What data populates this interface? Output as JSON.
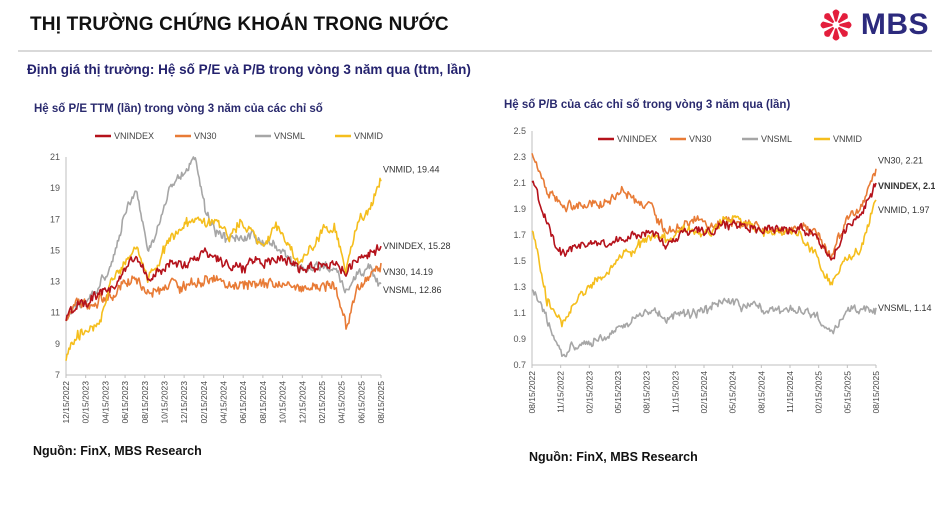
{
  "header": {
    "title": "THỊ TRƯỜNG CHỨNG KHOÁN TRONG NƯỚC",
    "brand": "MBS",
    "brand_colors": {
      "star": "#e31e3c",
      "text": "#2c2a7d"
    }
  },
  "subtitle": "Định giá thị trường: Hệ số P/E và P/B trong vòng 3 năm qua (ttm, lần)",
  "charts": [
    {
      "source": "Nguồn: FinX, MBS Research"
    },
    {
      "source": "Nguồn: FinX, MBS Research"
    }
  ],
  "chart_data": [
    {
      "type": "line",
      "title": "Hệ số P/E TTM (lần) trong vòng 3 năm của các chỉ số",
      "legend_position": "top",
      "y_ticks": [
        7,
        9,
        11,
        13,
        15,
        17,
        19,
        21
      ],
      "ylim": [
        7,
        21
      ],
      "x_ticks": [
        "12/15/2022",
        "02/15/2023",
        "04/15/2023",
        "06/15/2023",
        "08/15/2023",
        "10/15/2023",
        "12/15/2023",
        "02/15/2024",
        "04/15/2024",
        "06/15/2024",
        "08/15/2024",
        "10/15/2024",
        "12/15/2024",
        "02/15/2025",
        "04/15/2025",
        "06/15/2025",
        "08/15/2025"
      ],
      "grid": false,
      "series": [
        {
          "name": "VNINDEX",
          "color": "#b5121b",
          "end_label": "VNINDEX, 15.28",
          "values": [
            10.6,
            11.6,
            11.9,
            12.2,
            12.5,
            13.8,
            14.7,
            13.2,
            13.6,
            14.3,
            14.0,
            14.5,
            14.9,
            14.5,
            14.0,
            13.9,
            14.4,
            14.2,
            14.6,
            14.4,
            13.8,
            14.0,
            14.2,
            14.1,
            13.5,
            14.4,
            14.8,
            15.28
          ]
        },
        {
          "name": "VN30",
          "color": "#e87b36",
          "end_label": "VN30, 14.19",
          "values": [
            10.5,
            11.8,
            11.2,
            11.9,
            12.0,
            13.0,
            13.2,
            12.0,
            12.4,
            13.0,
            12.6,
            12.8,
            13.1,
            12.9,
            12.7,
            12.8,
            12.9,
            12.8,
            13.0,
            12.9,
            12.5,
            12.7,
            12.8,
            12.8,
            10.1,
            12.6,
            13.4,
            14.19
          ]
        },
        {
          "name": "VNSML",
          "color": "#a6a6a6",
          "end_label": "VNSML, 12.86",
          "values": [
            10.7,
            11.5,
            11.9,
            12.8,
            14.3,
            17.3,
            19.1,
            15.0,
            16.6,
            19.2,
            19.8,
            21.0,
            17.5,
            16.2,
            15.6,
            15.9,
            15.9,
            15.3,
            15.5,
            14.5,
            13.7,
            13.8,
            14.0,
            13.7,
            12.3,
            13.3,
            14.0,
            12.86
          ]
        },
        {
          "name": "VNMID",
          "color": "#f5be1d",
          "end_label": "VNMID, 19.44",
          "values": [
            8.0,
            9.6,
            10.0,
            10.7,
            13.3,
            14.1,
            15.3,
            13.2,
            14.3,
            15.9,
            16.4,
            17.2,
            16.6,
            17.0,
            16.1,
            16.8,
            16.0,
            15.0,
            16.7,
            15.4,
            14.0,
            15.0,
            16.2,
            16.5,
            13.6,
            17.0,
            17.6,
            19.44
          ]
        }
      ]
    },
    {
      "type": "line",
      "title": "Hệ số P/B của các chỉ số trong vòng 3 năm qua (lần)",
      "legend_position": "top",
      "y_ticks": [
        0.7,
        0.9,
        1.1,
        1.3,
        1.5,
        1.7,
        1.9,
        2.1,
        2.3,
        2.5
      ],
      "ylim": [
        0.7,
        2.5
      ],
      "x_ticks": [
        "08/15/2022",
        "11/15/2022",
        "02/15/2023",
        "05/15/2023",
        "08/15/2023",
        "11/15/2023",
        "02/15/2024",
        "05/15/2024",
        "08/15/2024",
        "11/15/2024",
        "02/15/2025",
        "05/15/2025",
        "08/15/2025"
      ],
      "grid": false,
      "series": [
        {
          "name": "VNINDEX",
          "color": "#b5121b",
          "end_label": "VNINDEX, 2.1",
          "values": [
            2.12,
            1.8,
            1.55,
            1.6,
            1.65,
            1.63,
            1.67,
            1.7,
            1.73,
            1.62,
            1.71,
            1.75,
            1.72,
            1.8,
            1.77,
            1.75,
            1.76,
            1.73,
            1.76,
            1.71,
            1.49,
            1.74,
            1.86,
            2.1
          ]
        },
        {
          "name": "VN30",
          "color": "#e87b36",
          "end_label": "VN30, 2.21",
          "values": [
            2.33,
            2.03,
            1.92,
            1.92,
            1.94,
            1.95,
            2.02,
            1.96,
            1.92,
            1.7,
            1.77,
            1.8,
            1.76,
            1.82,
            1.78,
            1.77,
            1.75,
            1.72,
            1.78,
            1.73,
            1.52,
            1.82,
            1.92,
            2.21
          ]
        },
        {
          "name": "VNSML",
          "color": "#a6a6a6",
          "end_label": "VNSML, 1.14",
          "values": [
            1.3,
            1.05,
            0.77,
            0.85,
            0.88,
            0.93,
            1.0,
            1.06,
            1.12,
            1.05,
            1.1,
            1.12,
            1.13,
            1.22,
            1.14,
            1.16,
            1.12,
            1.12,
            1.11,
            1.08,
            0.92,
            1.1,
            1.13,
            1.14
          ]
        },
        {
          "name": "VNMID",
          "color": "#f5be1d",
          "end_label": "VNMID, 1.97",
          "values": [
            1.74,
            1.2,
            1.04,
            1.2,
            1.33,
            1.4,
            1.55,
            1.6,
            1.7,
            1.66,
            1.74,
            1.72,
            1.75,
            1.83,
            1.8,
            1.73,
            1.72,
            1.72,
            1.68,
            1.53,
            1.31,
            1.52,
            1.6,
            1.97
          ]
        }
      ]
    }
  ]
}
